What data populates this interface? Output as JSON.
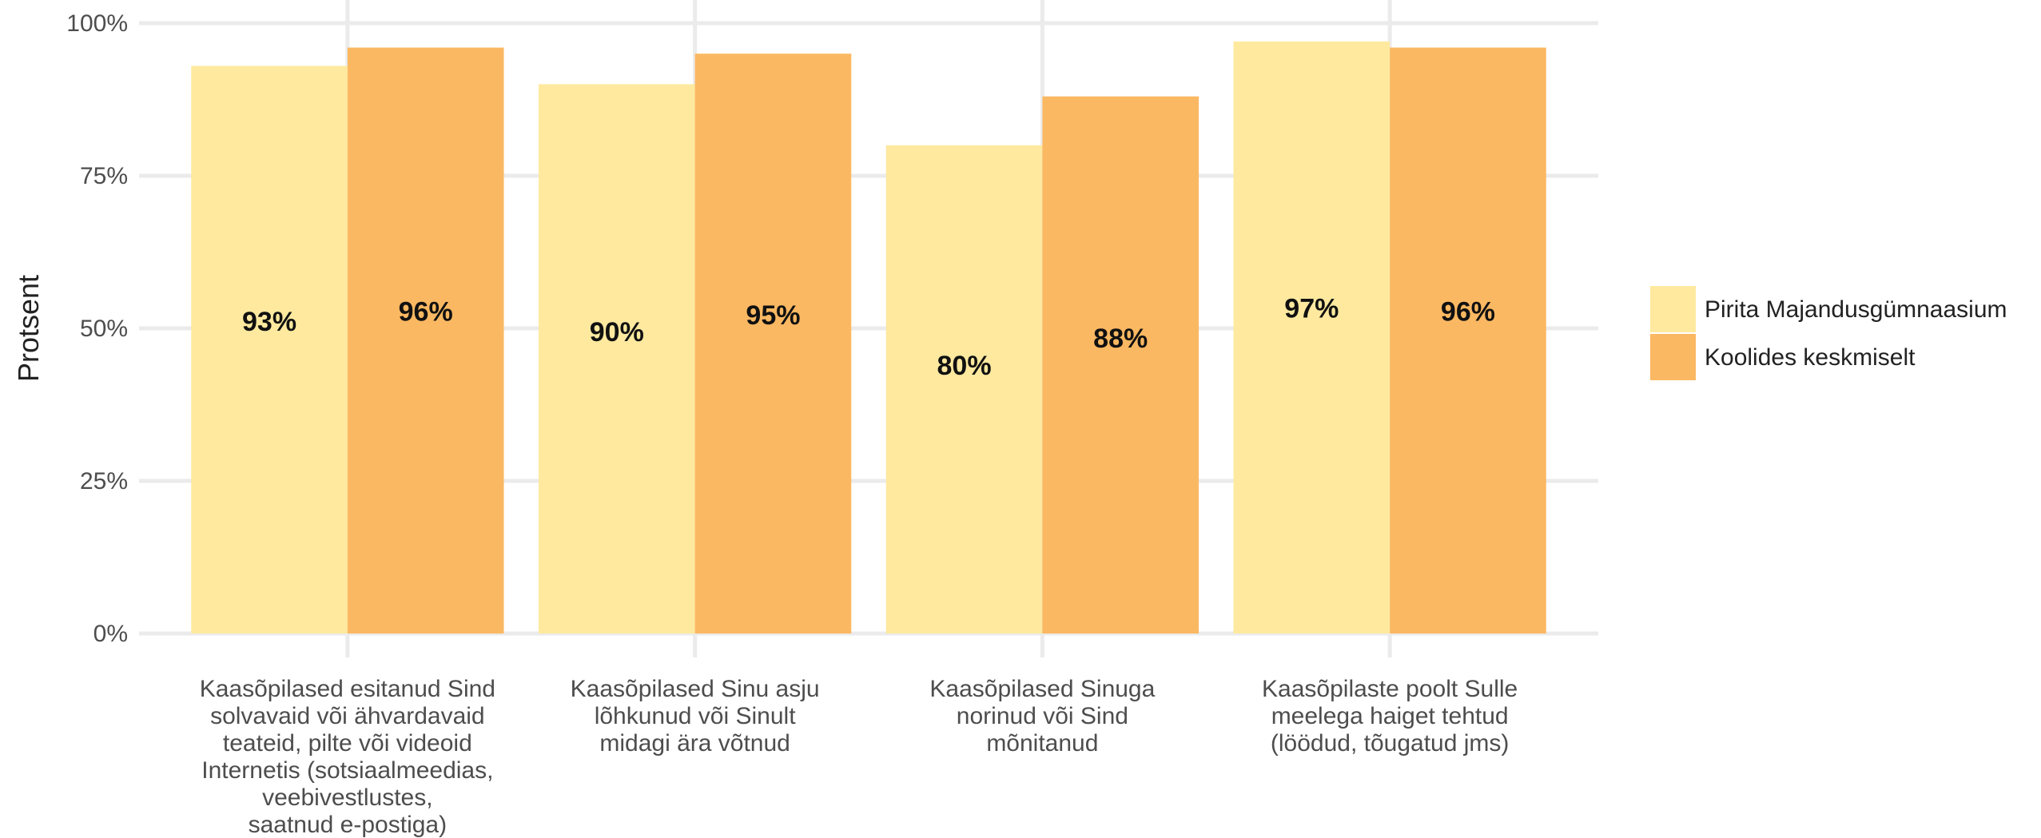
{
  "chart_data": {
    "type": "bar",
    "y_label": "Protsent",
    "categories": [
      "Kaasõpilased esitanud Sind\nsolvavaid või ähvardavaid\nteateid, pilte või videoid\nInternetis (sotsiaalmeedias,\nveebivestlustes,\nsaatnud e-postiga)",
      "Kaasõpilased Sinu asju\nlõhkunud või Sinult\nmidagi ära võtnud",
      "Kaasõpilased Sinuga\nnorinud või Sind\nmõnitanud",
      "Kaasõpilaste poolt Sulle\nmeelega haiget tehtud\n(löödud, tõugatud jms)"
    ],
    "series": [
      {
        "name": "Pirita Majandusgümnaasium",
        "color": "#fee99f",
        "values": [
          93,
          90,
          80,
          97
        ],
        "value_labels": [
          "93%",
          "90%",
          "80%",
          "97%"
        ]
      },
      {
        "name": "Koolides keskmiselt",
        "color": "#fbb862",
        "values": [
          96,
          95,
          88,
          96
        ],
        "value_labels": [
          "96%",
          "95%",
          "88%",
          "96%"
        ]
      }
    ],
    "ylim": [
      0,
      100
    ],
    "yticks": [
      {
        "value": 0,
        "label": "0%"
      },
      {
        "value": 25,
        "label": "25%"
      },
      {
        "value": 50,
        "label": "50%"
      },
      {
        "value": 75,
        "label": "75%"
      },
      {
        "value": 100,
        "label": "100%"
      }
    ],
    "grid": true,
    "legend": "right"
  }
}
